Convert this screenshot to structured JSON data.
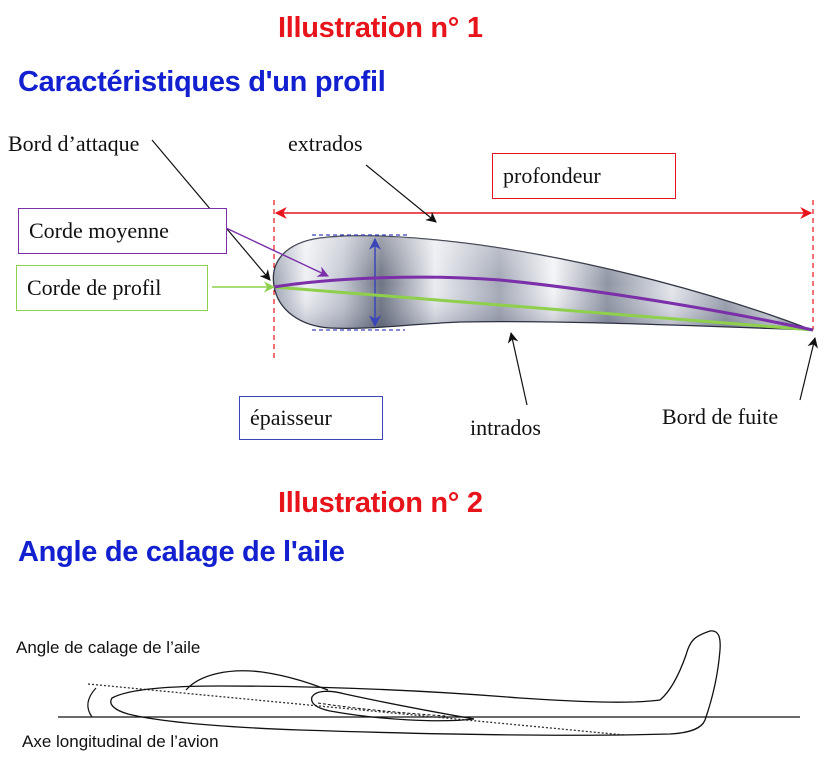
{
  "illustration1": {
    "number": "Illustration n° 1",
    "subtitle": "Caractéristiques d'un profil",
    "labels": {
      "bord_attaque": "Bord d’attaque",
      "extrados": "extrados",
      "profondeur": "profondeur",
      "corde_moyenne": "Corde moyenne",
      "corde_profil": "Corde de profil",
      "epaisseur": "épaisseur",
      "intrados": "intrados",
      "bord_fuite": "Bord de fuite"
    }
  },
  "illustration2": {
    "number": "Illustration n° 2",
    "subtitle": "Angle de calage de l'aile",
    "labels": {
      "angle_calage": "Angle de calage de l’aile",
      "axe_longitudinal": "Axe longitudinal de l’avion"
    }
  },
  "colors": {
    "title_red": "#e8141b",
    "title_blue": "#1220cf",
    "profondeur_red": "#e8141b",
    "corde_moyenne_purple": "#7b2fa8",
    "corde_profil_green": "#8ed04b",
    "epaisseur_blue": "#3a46b8"
  }
}
